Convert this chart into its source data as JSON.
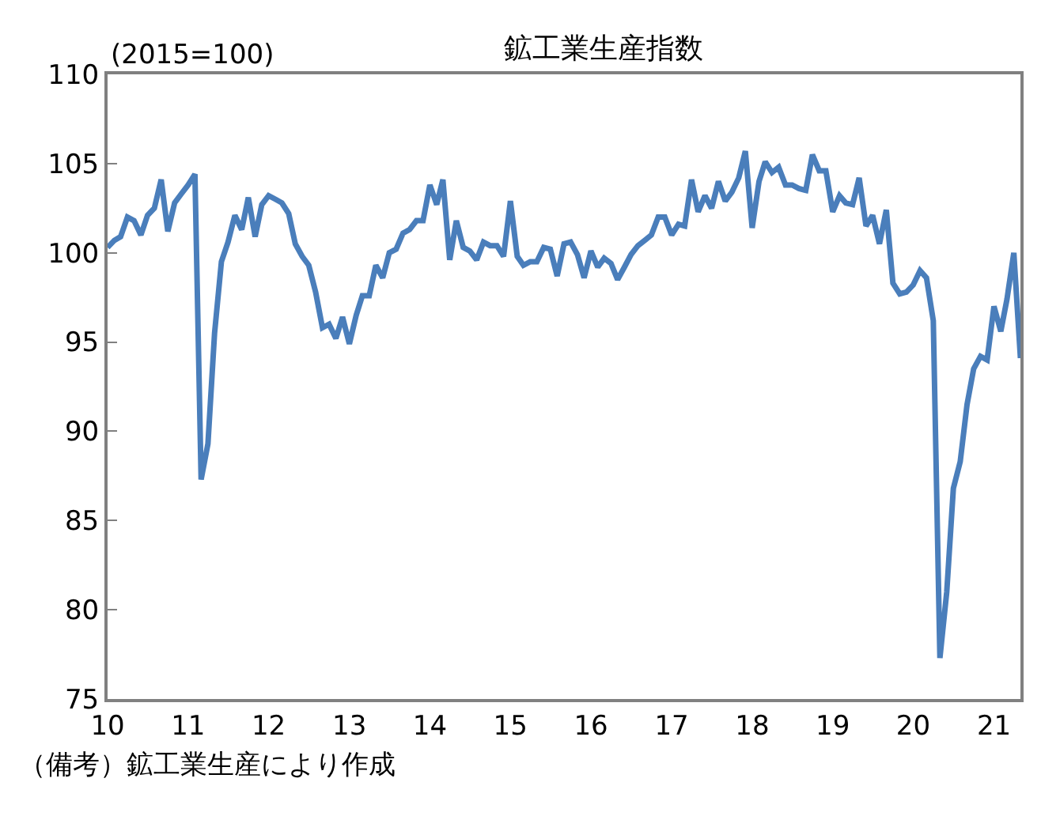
{
  "chart_data": {
    "type": "line",
    "title": "鉱工業生産指数",
    "annotations": [
      "(2015=100)",
      "（備考）鉱工業生産により作成"
    ],
    "x": [
      "2010-01",
      "2010-02",
      "2010-03",
      "2010-04",
      "2010-05",
      "2010-06",
      "2010-07",
      "2010-08",
      "2010-09",
      "2010-10",
      "2010-11",
      "2010-12",
      "2011-01",
      "2011-02",
      "2011-03",
      "2011-04",
      "2011-05",
      "2011-06",
      "2011-07",
      "2011-08",
      "2011-09",
      "2011-10",
      "2011-11",
      "2011-12",
      "2012-01",
      "2012-02",
      "2012-03",
      "2012-04",
      "2012-05",
      "2012-06",
      "2012-07",
      "2012-08",
      "2012-09",
      "2012-10",
      "2012-11",
      "2012-12",
      "2013-01",
      "2013-02",
      "2013-03",
      "2013-04",
      "2013-05",
      "2013-06",
      "2013-07",
      "2013-08",
      "2013-09",
      "2013-10",
      "2013-11",
      "2013-12",
      "2014-01",
      "2014-02",
      "2014-03",
      "2014-04",
      "2014-05",
      "2014-06",
      "2014-07",
      "2014-08",
      "2014-09",
      "2014-10",
      "2014-11",
      "2014-12",
      "2015-01",
      "2015-02",
      "2015-03",
      "2015-04",
      "2015-05",
      "2015-06",
      "2015-07",
      "2015-08",
      "2015-09",
      "2015-10",
      "2015-11",
      "2015-12",
      "2016-01",
      "2016-02",
      "2016-03",
      "2016-04",
      "2016-05",
      "2016-06",
      "2016-07",
      "2016-08",
      "2016-09",
      "2016-10",
      "2016-11",
      "2016-12",
      "2017-01",
      "2017-02",
      "2017-03",
      "2017-04",
      "2017-05",
      "2017-06",
      "2017-07",
      "2017-08",
      "2017-09",
      "2017-10",
      "2017-11",
      "2017-12",
      "2018-01",
      "2018-02",
      "2018-03",
      "2018-04",
      "2018-05",
      "2018-06",
      "2018-07",
      "2018-08",
      "2018-09",
      "2018-10",
      "2018-11",
      "2018-12",
      "2019-01",
      "2019-02",
      "2019-03",
      "2019-04",
      "2019-05",
      "2019-06",
      "2019-07",
      "2019-08",
      "2019-09",
      "2019-10",
      "2019-11",
      "2019-12",
      "2020-01",
      "2020-02",
      "2020-03",
      "2020-04",
      "2020-05",
      "2020-06",
      "2020-07",
      "2020-08",
      "2020-09",
      "2020-10",
      "2020-11",
      "2020-12",
      "2021-01",
      "2021-02",
      "2021-03",
      "2021-04",
      "2021-05"
    ],
    "series": [
      {
        "color": "#4a7ebb",
        "values": [
          100.3,
          100.7,
          100.9,
          102.0,
          101.8,
          101.0,
          102.1,
          102.5,
          104.1,
          101.2,
          102.8,
          103.3,
          103.8,
          104.4,
          87.3,
          89.3,
          95.5,
          99.5,
          100.6,
          102.1,
          101.3,
          103.1,
          100.9,
          102.7,
          103.2,
          103.0,
          102.8,
          102.2,
          100.5,
          99.8,
          99.3,
          97.8,
          95.8,
          96.0,
          95.2,
          96.4,
          94.9,
          96.5,
          97.6,
          97.6,
          99.3,
          98.6,
          100.0,
          100.2,
          101.1,
          101.3,
          101.8,
          101.8,
          103.8,
          102.7,
          104.1,
          99.6,
          101.8,
          100.3,
          100.1,
          99.6,
          100.6,
          100.4,
          100.4,
          99.8,
          102.9,
          99.8,
          99.3,
          99.5,
          99.5,
          100.3,
          100.2,
          98.7,
          100.5,
          100.6,
          99.9,
          98.6,
          100.1,
          99.2,
          99.7,
          99.4,
          98.5,
          99.2,
          99.9,
          100.4,
          100.7,
          101.0,
          102.0,
          102.0,
          101.0,
          101.6,
          101.5,
          104.1,
          102.3,
          103.2,
          102.5,
          104.0,
          102.9,
          103.4,
          104.2,
          105.7,
          101.4,
          104.0,
          105.1,
          104.5,
          104.8,
          103.8,
          103.8,
          103.6,
          103.5,
          105.5,
          104.6,
          104.6,
          102.3,
          103.2,
          102.8,
          102.7,
          104.2,
          101.5,
          102.1,
          100.5,
          102.4,
          98.3,
          97.7,
          97.8,
          98.2,
          99.0,
          98.6,
          96.2,
          77.3,
          81.0,
          86.8,
          88.3,
          91.5,
          93.5,
          94.2,
          94.0,
          97.0,
          95.6,
          97.4,
          100.0,
          94.1
        ]
      }
    ],
    "xlim": [
      "2010-01",
      "2021-05"
    ],
    "xticks": [
      {
        "value": "2010-01",
        "label": "10"
      },
      {
        "value": "2011-01",
        "label": "11"
      },
      {
        "value": "2012-01",
        "label": "12"
      },
      {
        "value": "2013-01",
        "label": "13"
      },
      {
        "value": "2014-01",
        "label": "14"
      },
      {
        "value": "2015-01",
        "label": "15"
      },
      {
        "value": "2016-01",
        "label": "16"
      },
      {
        "value": "2017-01",
        "label": "17"
      },
      {
        "value": "2018-01",
        "label": "18"
      },
      {
        "value": "2019-01",
        "label": "19"
      },
      {
        "value": "2020-01",
        "label": "20"
      },
      {
        "value": "2021-01",
        "label": "21"
      }
    ],
    "ylim": [
      75,
      110
    ],
    "yticks": [
      75,
      80,
      85,
      90,
      95,
      100,
      105,
      110
    ],
    "marker": "none",
    "line_style": "solid"
  }
}
